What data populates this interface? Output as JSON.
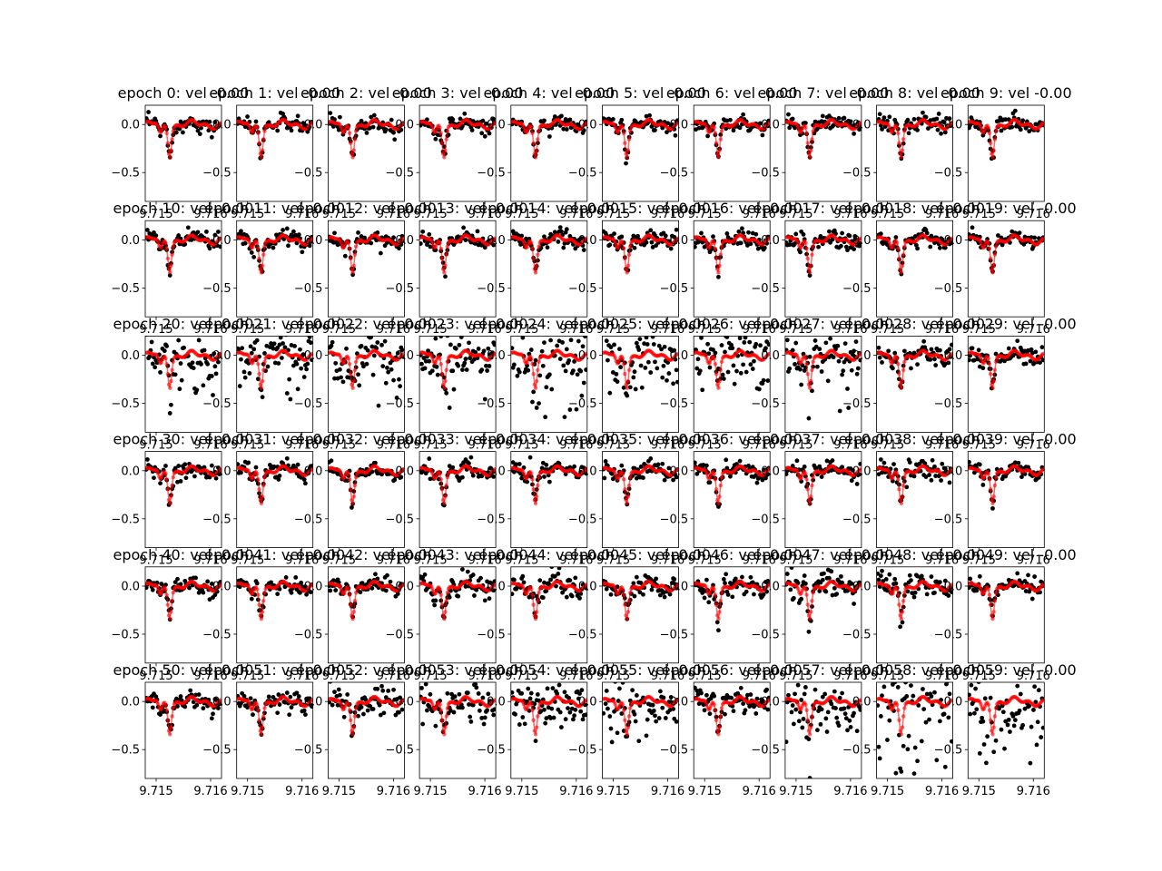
{
  "figure": {
    "background": "#ffffff",
    "observed_color": "#000000",
    "model_color": "#ff0000",
    "model_alpha": 0.6
  },
  "chart_data": {
    "type": "scatter",
    "layout": "grid of small multiples, 6 rows x 10 columns",
    "xlim": [
      9.7148,
      9.7162
    ],
    "ylim": [
      -0.8,
      0.2
    ],
    "x_tick_values": [
      9.715,
      9.716
    ],
    "x_tick_labels": [
      "9.715",
      "9.716"
    ],
    "y_tick_values": [
      0.0,
      -0.5
    ],
    "y_tick_labels": [
      "0.0",
      "−0.5"
    ],
    "grid": false,
    "series": [
      {
        "color": "#000000",
        "marker": "filled circle"
      },
      {
        "color": "#ff0000",
        "marker": "filled circle with connecting line"
      }
    ],
    "dip": {
      "x_center": 9.71525,
      "depth": -0.3
    },
    "panels": [
      {
        "title": "epoch 0: vel -0.00",
        "scatter": 0.035
      },
      {
        "title": "epoch 1: vel -0.00",
        "scatter": 0.035
      },
      {
        "title": "epoch 2: vel -0.00",
        "scatter": 0.04
      },
      {
        "title": "epoch 3: vel -0.00",
        "scatter": 0.04
      },
      {
        "title": "epoch 4: vel -0.00",
        "scatter": 0.035
      },
      {
        "title": "epoch 5: vel -0.00",
        "scatter": 0.035
      },
      {
        "title": "epoch 6: vel -0.00",
        "scatter": 0.035
      },
      {
        "title": "epoch 7: vel -0.00",
        "scatter": 0.04
      },
      {
        "title": "epoch 8: vel -0.00",
        "scatter": 0.05
      },
      {
        "title": "epoch 9: vel -0.00",
        "scatter": 0.04
      },
      {
        "title": "epoch 10: vel -0.00",
        "scatter": 0.04
      },
      {
        "title": "epoch 11: vel -0.00",
        "scatter": 0.04
      },
      {
        "title": "epoch 12: vel -0.00",
        "scatter": 0.04
      },
      {
        "title": "epoch 13: vel -0.00",
        "scatter": 0.035
      },
      {
        "title": "epoch 14: vel -0.00",
        "scatter": 0.045
      },
      {
        "title": "epoch 15: vel -0.00",
        "scatter": 0.045
      },
      {
        "title": "epoch 16: vel -0.00",
        "scatter": 0.04
      },
      {
        "title": "epoch 17: vel -0.00",
        "scatter": 0.05
      },
      {
        "title": "epoch 18: vel -0.00",
        "scatter": 0.04
      },
      {
        "title": "epoch 19: vel -0.00",
        "scatter": 0.035
      },
      {
        "title": "epoch 20: vel -0.00",
        "scatter": 0.11
      },
      {
        "title": "epoch 21: vel -0.00",
        "scatter": 0.12
      },
      {
        "title": "epoch 22: vel -0.00",
        "scatter": 0.13
      },
      {
        "title": "epoch 23: vel -0.00",
        "scatter": 0.12
      },
      {
        "title": "epoch 24: vel -0.00",
        "scatter": 0.22
      },
      {
        "title": "epoch 25: vel -0.00",
        "scatter": 0.15
      },
      {
        "title": "epoch 26: vel -0.00",
        "scatter": 0.15
      },
      {
        "title": "epoch 27: vel -0.00",
        "scatter": 0.14
      },
      {
        "title": "epoch 28: vel -0.00",
        "scatter": 0.05
      },
      {
        "title": "epoch 29: vel -0.00",
        "scatter": 0.05
      },
      {
        "title": "epoch 30: vel -0.00",
        "scatter": 0.045
      },
      {
        "title": "epoch 31: vel -0.00",
        "scatter": 0.04
      },
      {
        "title": "epoch 32: vel -0.00",
        "scatter": 0.04
      },
      {
        "title": "epoch 33: vel -0.00",
        "scatter": 0.045
      },
      {
        "title": "epoch 34: vel -0.00",
        "scatter": 0.045
      },
      {
        "title": "epoch 35: vel -0.00",
        "scatter": 0.04
      },
      {
        "title": "epoch 36: vel -0.00",
        "scatter": 0.04
      },
      {
        "title": "epoch 37: vel -0.00",
        "scatter": 0.04
      },
      {
        "title": "epoch 38: vel -0.00",
        "scatter": 0.05
      },
      {
        "title": "epoch 39: vel -0.00",
        "scatter": 0.035
      },
      {
        "title": "epoch 40: vel -0.00",
        "scatter": 0.04
      },
      {
        "title": "epoch 41: vel -0.00",
        "scatter": 0.04
      },
      {
        "title": "epoch 42: vel -0.00",
        "scatter": 0.04
      },
      {
        "title": "epoch 43: vel -0.00",
        "scatter": 0.05
      },
      {
        "title": "epoch 44: vel -0.00",
        "scatter": 0.06
      },
      {
        "title": "epoch 45: vel -0.00",
        "scatter": 0.05
      },
      {
        "title": "epoch 46: vel -0.00",
        "scatter": 0.05
      },
      {
        "title": "epoch 47: vel -0.00",
        "scatter": 0.07
      },
      {
        "title": "epoch 48: vel -0.00",
        "scatter": 0.07
      },
      {
        "title": "epoch 49: vel -0.00",
        "scatter": 0.05
      },
      {
        "title": "epoch 50: vel -0.00",
        "scatter": 0.045
      },
      {
        "title": "epoch 51: vel -0.00",
        "scatter": 0.05
      },
      {
        "title": "epoch 52: vel -0.00",
        "scatter": 0.08
      },
      {
        "title": "epoch 53: vel -0.00",
        "scatter": 0.09
      },
      {
        "title": "epoch 54: vel -0.00",
        "scatter": 0.11
      },
      {
        "title": "epoch 55: vel -0.00",
        "scatter": 0.14
      },
      {
        "title": "epoch 56: vel -0.00",
        "scatter": 0.07
      },
      {
        "title": "epoch 57: vel -0.00",
        "scatter": 0.16
      },
      {
        "title": "epoch 58: vel -0.00",
        "scatter": 0.3
      },
      {
        "title": "epoch 59: vel -0.00",
        "scatter": 0.25
      }
    ]
  }
}
